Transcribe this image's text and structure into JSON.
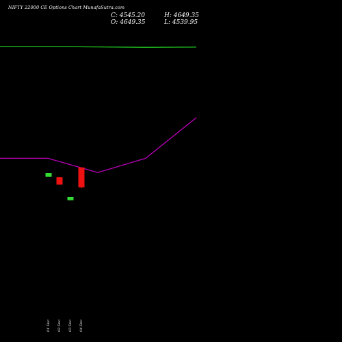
{
  "header": {
    "title": "NIFTY 22000  CE Options  Chart MunafaSutra.com",
    "close": "C: 4545.20",
    "high": "H: 4649.35",
    "open": "O: 4649.35",
    "low": "L: 4539.95"
  },
  "chart_data": {
    "type": "candlestick",
    "title": "NIFTY 22000  CE Options  Chart MunafaSutra.com",
    "x_tick_labels": [
      "01 Dec",
      "02 Dec",
      "03 Dec",
      "04 Dec"
    ],
    "candles": [
      {
        "label": "01 Dec",
        "open": 4600,
        "close": 4620,
        "high": 4620,
        "low": 4600,
        "color": "#33dd33"
      },
      {
        "label": "02 Dec",
        "open": 4598,
        "close": 4560,
        "high": 4598,
        "low": 4560,
        "color": "#ee1111"
      },
      {
        "label": "03 Dec",
        "open": 4478,
        "close": 4495,
        "high": 4495,
        "low": 4478,
        "color": "#33dd33"
      },
      {
        "label": "04 Dec",
        "open": 4649.35,
        "close": 4545.2,
        "high": 4649.35,
        "low": 4539.95,
        "color": "#ee1111"
      }
    ],
    "lines": [
      {
        "color": "#22cc22",
        "values": [
          14800,
          14800,
          14780,
          14760,
          14770
        ]
      },
      {
        "color": "#bb00bb",
        "values": [
          9300,
          9300,
          8600,
          9300,
          11300
        ]
      }
    ],
    "grid": false,
    "colors": {
      "background": "#000000",
      "text": "#ffffff"
    }
  }
}
